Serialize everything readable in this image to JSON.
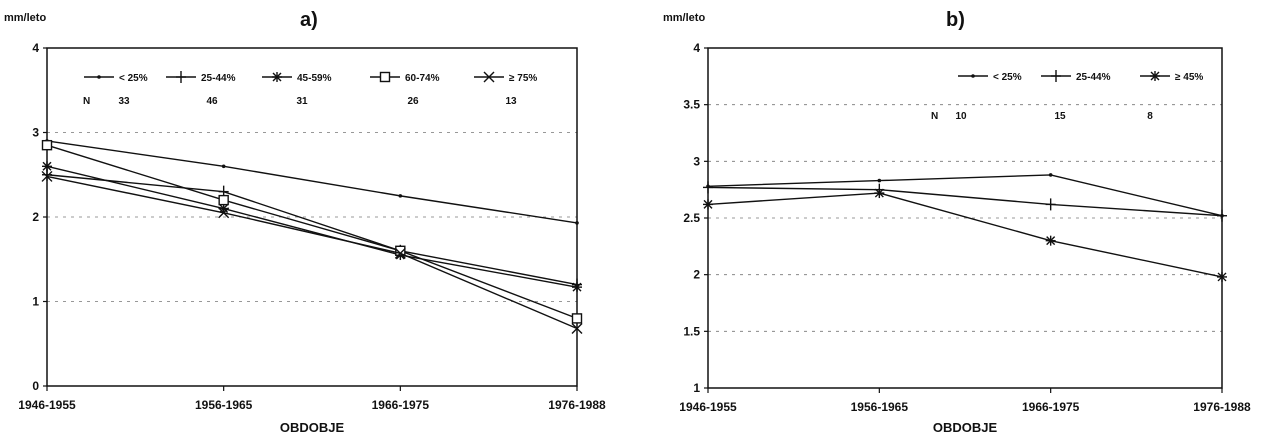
{
  "chart_data": [
    {
      "type": "line",
      "panel_label": "a)",
      "ylabel": "mm/leto",
      "xlabel": "OBDOBJE",
      "x": [
        "1946-1955",
        "1956-1965",
        "1966-1975",
        "1976-1988"
      ],
      "ylim": [
        0,
        4
      ],
      "yticks": [
        "0",
        "1",
        "2",
        "3",
        "4"
      ],
      "grid": "horizontal dashed",
      "legend_position": "top",
      "n_label": "N",
      "series": [
        {
          "name": "< 25%",
          "marker": "dot",
          "n": "33",
          "values": [
            2.9,
            2.6,
            2.25,
            1.93
          ]
        },
        {
          "name": "25-44%",
          "marker": "plus",
          "n": "46",
          "values": [
            2.5,
            2.3,
            1.6,
            1.2
          ]
        },
        {
          "name": "45-59%",
          "marker": "asterisk",
          "n": "31",
          "values": [
            2.6,
            2.1,
            1.55,
            1.17
          ]
        },
        {
          "name": "60-74%",
          "marker": "square",
          "n": "26",
          "values": [
            2.85,
            2.2,
            1.6,
            0.8
          ]
        },
        {
          "name": "≥ 75%",
          "marker": "x",
          "n": "13",
          "values": [
            2.48,
            2.05,
            1.57,
            0.68
          ]
        }
      ]
    },
    {
      "type": "line",
      "panel_label": "b)",
      "ylabel": "mm/leto",
      "xlabel": "OBDOBJE",
      "x": [
        "1946-1955",
        "1956-1965",
        "1966-1975",
        "1976-1988"
      ],
      "ylim": [
        1,
        4
      ],
      "yticks": [
        "1",
        "1.5",
        "2",
        "2.5",
        "3",
        "3.5",
        "4"
      ],
      "grid": "horizontal dashed",
      "legend_position": "top-right",
      "n_label": "N",
      "series": [
        {
          "name": "< 25%",
          "marker": "dot",
          "n": "10",
          "values": [
            2.78,
            2.83,
            2.88,
            2.52
          ]
        },
        {
          "name": "25-44%",
          "marker": "plus",
          "n": "15",
          "values": [
            2.77,
            2.75,
            2.62,
            2.52
          ]
        },
        {
          "name": "≥ 45%",
          "marker": "asterisk",
          "n": "8",
          "values": [
            2.62,
            2.72,
            2.3,
            1.98
          ]
        }
      ]
    }
  ]
}
